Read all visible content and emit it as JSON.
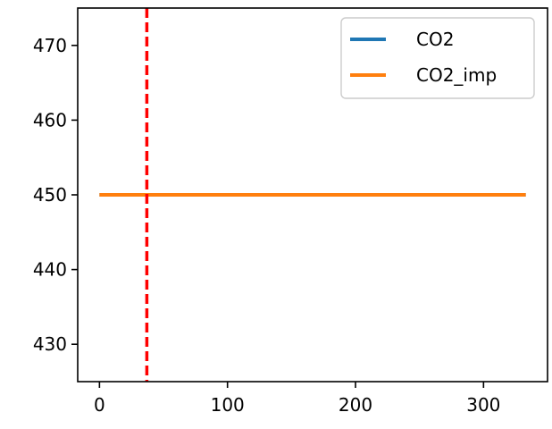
{
  "chart_data": {
    "type": "line",
    "xlim": [
      -17,
      350
    ],
    "ylim": [
      425,
      475
    ],
    "xticks": [
      0,
      100,
      200,
      300
    ],
    "yticks": [
      430,
      440,
      450,
      460,
      470
    ],
    "grid": false,
    "legend_position": "top-right",
    "series": [
      {
        "name": "CO2",
        "color": "#1f77b4",
        "x": [
          0,
          333
        ],
        "y": [
          450,
          450
        ]
      },
      {
        "name": "CO2_imp",
        "color": "#ff7f0e",
        "x": [
          0,
          333
        ],
        "y": [
          450,
          450
        ]
      }
    ],
    "vline": {
      "x": 37,
      "color": "#ff0000",
      "style": "dashed"
    }
  }
}
